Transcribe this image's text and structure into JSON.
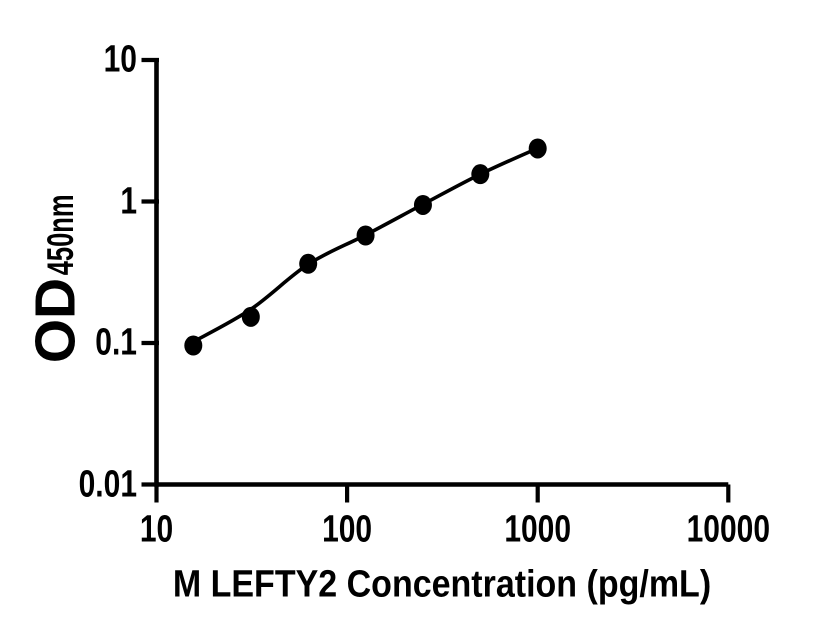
{
  "colors": {
    "foreground": "#000000",
    "background": "#ffffff"
  },
  "chart_data": {
    "type": "scatter",
    "title": "",
    "xlabel": "M LEFTY2 Concentration (pg/mL)",
    "ylabel": "OD450nm",
    "ylabel_main": "OD",
    "ylabel_sub": "450nm",
    "x_axis": {
      "scale": "log10",
      "min": 10,
      "max": 10000,
      "tick_values": [
        10,
        100,
        1000,
        10000
      ],
      "tick_labels": [
        "10",
        "100",
        "1000",
        "10000"
      ]
    },
    "y_axis": {
      "scale": "log10",
      "min": 0.01,
      "max": 10,
      "tick_values": [
        0.01,
        0.1,
        1,
        10
      ],
      "tick_labels": [
        "0.01",
        "0.1",
        "1",
        "10"
      ]
    },
    "grid": false,
    "legend": "none",
    "marker": "filled-circle",
    "series": [
      {
        "points": [
          {
            "x": 15.6,
            "od": 0.096
          },
          {
            "x": 31.25,
            "od": 0.153
          },
          {
            "x": 62.5,
            "od": 0.363
          },
          {
            "x": 125,
            "od": 0.575
          },
          {
            "x": 250,
            "od": 0.945
          },
          {
            "x": 500,
            "od": 1.56
          },
          {
            "x": 1000,
            "od": 2.37
          }
        ],
        "fit_curve_points": [
          {
            "x": 15.6,
            "od": 0.102
          },
          {
            "x": 31.25,
            "od": 0.173
          },
          {
            "x": 62.5,
            "od": 0.36
          },
          {
            "x": 125,
            "od": 0.58
          },
          {
            "x": 250,
            "od": 0.955
          },
          {
            "x": 500,
            "od": 1.56
          },
          {
            "x": 1000,
            "od": 2.38
          }
        ]
      }
    ]
  }
}
